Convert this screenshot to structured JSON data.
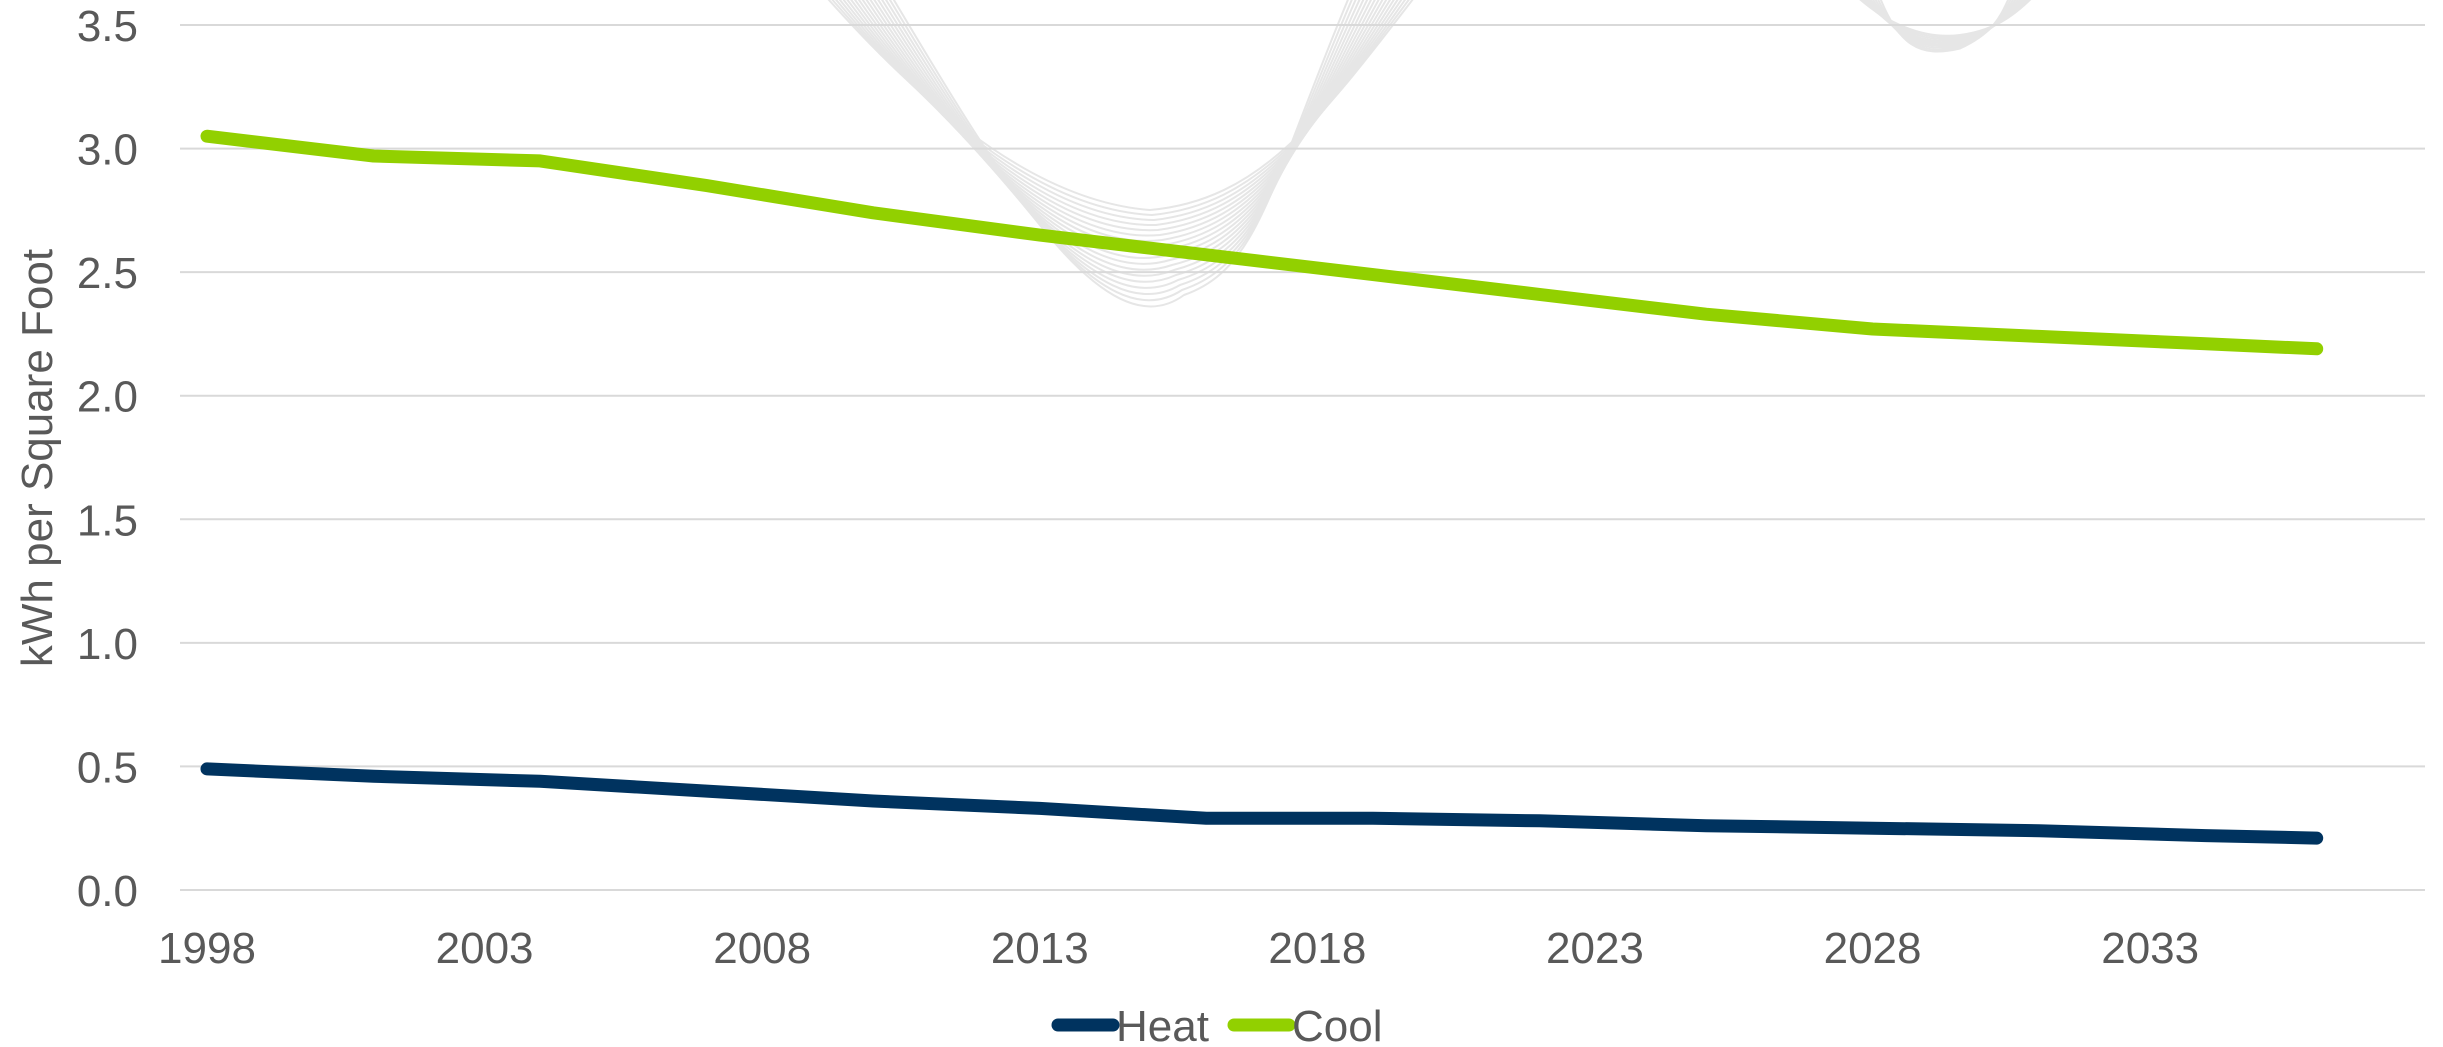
{
  "chart_data": {
    "type": "line",
    "title": "",
    "xlabel": "",
    "ylabel": "kWh per Square Foot",
    "ylim": [
      0.0,
      3.5
    ],
    "yticks": [
      "0.0",
      "0.5",
      "1.0",
      "1.5",
      "2.0",
      "2.5",
      "3.0",
      "3.5"
    ],
    "xticks": [
      "1998",
      "2003",
      "2008",
      "2013",
      "2018",
      "2023",
      "2028",
      "2033"
    ],
    "x": [
      1998,
      2001,
      2004,
      2007,
      2010,
      2013,
      2016,
      2019,
      2022,
      2025,
      2028,
      2031,
      2034,
      2036
    ],
    "series": [
      {
        "name": "Heat",
        "color": "#00335f",
        "values": [
          0.49,
          0.46,
          0.44,
          0.4,
          0.36,
          0.33,
          0.29,
          0.29,
          0.28,
          0.26,
          0.25,
          0.24,
          0.22,
          0.21
        ]
      },
      {
        "name": "Cool",
        "color": "#92d000",
        "values": [
          3.05,
          2.97,
          2.95,
          2.85,
          2.74,
          2.65,
          2.57,
          2.49,
          2.41,
          2.33,
          2.27,
          2.24,
          2.21,
          2.19
        ]
      }
    ],
    "grid": true,
    "legend_position": "bottom"
  }
}
